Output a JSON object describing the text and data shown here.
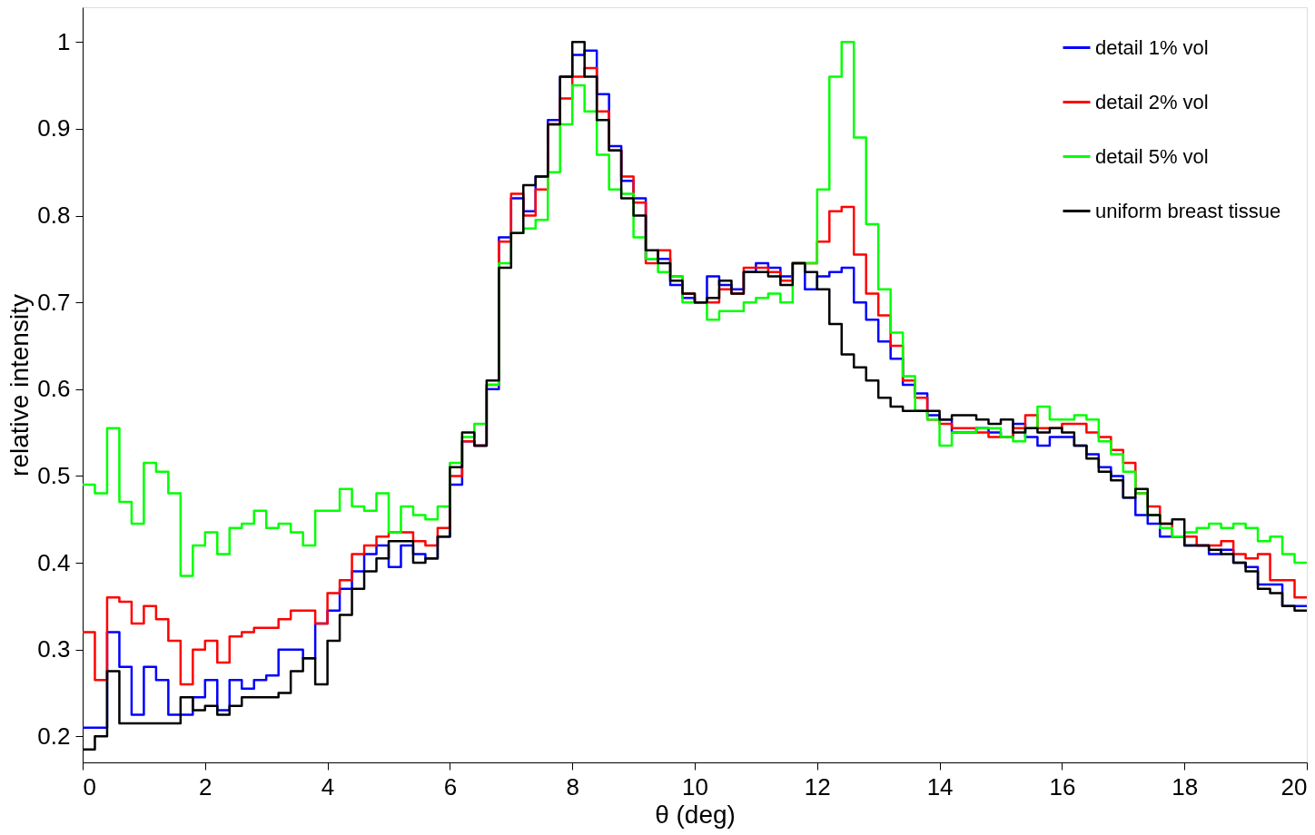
{
  "chart_data": {
    "type": "histogram",
    "xlabel": "θ (deg)",
    "ylabel": "relative intensity",
    "bins": [
      0,
      0.2,
      0.4,
      0.6,
      0.8,
      1,
      1.2,
      1.4,
      1.6,
      1.8,
      2,
      2.2,
      2.4,
      2.6,
      2.8,
      3,
      3.2,
      3.4,
      3.6,
      3.8,
      4,
      4.2,
      4.4,
      4.6,
      4.8,
      5,
      5.2,
      5.4,
      5.6,
      5.8,
      6,
      6.2,
      6.4,
      6.6,
      6.8,
      7,
      7.2,
      7.4,
      7.6,
      7.8,
      8,
      8.2,
      8.4,
      8.6,
      8.8,
      9,
      9.2,
      9.4,
      9.6,
      9.8,
      10,
      10.2,
      10.4,
      10.6,
      10.8,
      11,
      11.2,
      11.4,
      11.6,
      11.8,
      12,
      12.2,
      12.4,
      12.6,
      12.8,
      13,
      13.2,
      13.4,
      13.6,
      13.8,
      14,
      14.2,
      14.4,
      14.6,
      14.8,
      15,
      15.2,
      15.4,
      15.6,
      15.8,
      16,
      16.2,
      16.4,
      16.6,
      16.8,
      17,
      17.2,
      17.4,
      17.6,
      17.8,
      18,
      18.2,
      18.4,
      18.6,
      18.8,
      19,
      19.2,
      19.4,
      19.6,
      19.8,
      20
    ],
    "series": [
      {
        "name": "detail 1% vol",
        "color": "#0000ff",
        "values": [
          0.21,
          0.21,
          0.32,
          0.28,
          0.225,
          0.28,
          0.265,
          0.225,
          0.225,
          0.245,
          0.265,
          0.23,
          0.265,
          0.255,
          0.265,
          0.27,
          0.3,
          0.3,
          0.29,
          0.33,
          0.345,
          0.37,
          0.39,
          0.41,
          0.42,
          0.395,
          0.42,
          0.41,
          0.405,
          0.43,
          0.49,
          0.54,
          0.535,
          0.6,
          0.775,
          0.82,
          0.805,
          0.845,
          0.91,
          0.96,
          0.985,
          0.99,
          0.94,
          0.88,
          0.84,
          0.82,
          0.75,
          0.75,
          0.72,
          0.705,
          0.7,
          0.73,
          0.72,
          0.715,
          0.735,
          0.745,
          0.74,
          0.73,
          0.745,
          0.715,
          0.73,
          0.735,
          0.74,
          0.7,
          0.68,
          0.655,
          0.635,
          0.605,
          0.595,
          0.57,
          0.565,
          0.55,
          0.55,
          0.555,
          0.55,
          0.545,
          0.56,
          0.545,
          0.535,
          0.545,
          0.545,
          0.535,
          0.525,
          0.51,
          0.5,
          0.475,
          0.455,
          0.445,
          0.43,
          0.43,
          0.42,
          0.42,
          0.41,
          0.415,
          0.4,
          0.395,
          0.375,
          0.375,
          0.35,
          0.35
        ]
      },
      {
        "name": "detail 2% vol",
        "color": "#ff0000",
        "values": [
          0.32,
          0.265,
          0.36,
          0.355,
          0.33,
          0.35,
          0.335,
          0.31,
          0.26,
          0.3,
          0.31,
          0.285,
          0.315,
          0.32,
          0.325,
          0.325,
          0.335,
          0.345,
          0.345,
          0.33,
          0.365,
          0.38,
          0.41,
          0.42,
          0.43,
          0.435,
          0.435,
          0.425,
          0.42,
          0.44,
          0.5,
          0.54,
          0.535,
          0.605,
          0.77,
          0.825,
          0.8,
          0.83,
          0.905,
          0.935,
          0.96,
          0.97,
          0.92,
          0.875,
          0.845,
          0.815,
          0.745,
          0.76,
          0.73,
          0.71,
          0.7,
          0.7,
          0.715,
          0.71,
          0.74,
          0.74,
          0.735,
          0.725,
          0.745,
          0.745,
          0.77,
          0.805,
          0.81,
          0.755,
          0.71,
          0.685,
          0.65,
          0.61,
          0.59,
          0.565,
          0.56,
          0.555,
          0.555,
          0.55,
          0.545,
          0.545,
          0.555,
          0.57,
          0.555,
          0.555,
          0.56,
          0.56,
          0.55,
          0.545,
          0.53,
          0.515,
          0.48,
          0.465,
          0.445,
          0.43,
          0.43,
          0.42,
          0.42,
          0.425,
          0.41,
          0.405,
          0.41,
          0.38,
          0.38,
          0.36
        ]
      },
      {
        "name": "detail 5% vol",
        "color": "#00ff00",
        "values": [
          0.49,
          0.48,
          0.555,
          0.47,
          0.445,
          0.515,
          0.505,
          0.48,
          0.385,
          0.42,
          0.435,
          0.41,
          0.44,
          0.445,
          0.46,
          0.44,
          0.445,
          0.435,
          0.42,
          0.46,
          0.46,
          0.485,
          0.465,
          0.46,
          0.48,
          0.435,
          0.465,
          0.455,
          0.45,
          0.465,
          0.515,
          0.545,
          0.56,
          0.605,
          0.745,
          0.78,
          0.785,
          0.795,
          0.85,
          0.905,
          0.95,
          0.92,
          0.87,
          0.83,
          0.825,
          0.775,
          0.75,
          0.735,
          0.73,
          0.7,
          0.7,
          0.68,
          0.69,
          0.69,
          0.7,
          0.705,
          0.71,
          0.7,
          0.745,
          0.745,
          0.83,
          0.96,
          1.0,
          0.89,
          0.79,
          0.715,
          0.665,
          0.615,
          0.575,
          0.565,
          0.535,
          0.55,
          0.55,
          0.555,
          0.555,
          0.545,
          0.54,
          0.555,
          0.58,
          0.565,
          0.565,
          0.57,
          0.565,
          0.54,
          0.525,
          0.505,
          0.48,
          0.455,
          0.44,
          0.43,
          0.435,
          0.44,
          0.445,
          0.44,
          0.445,
          0.44,
          0.425,
          0.43,
          0.41,
          0.4
        ]
      },
      {
        "name": "uniform breast tissue",
        "color": "#000000",
        "values": [
          0.185,
          0.2,
          0.275,
          0.215,
          0.215,
          0.215,
          0.215,
          0.215,
          0.245,
          0.23,
          0.235,
          0.225,
          0.235,
          0.245,
          0.245,
          0.245,
          0.25,
          0.275,
          0.29,
          0.26,
          0.31,
          0.34,
          0.37,
          0.39,
          0.405,
          0.425,
          0.425,
          0.4,
          0.405,
          0.43,
          0.51,
          0.55,
          0.535,
          0.61,
          0.74,
          0.78,
          0.835,
          0.845,
          0.905,
          0.96,
          1.0,
          0.96,
          0.91,
          0.875,
          0.82,
          0.8,
          0.76,
          0.745,
          0.725,
          0.71,
          0.7,
          0.705,
          0.725,
          0.71,
          0.735,
          0.735,
          0.73,
          0.72,
          0.745,
          0.735,
          0.715,
          0.675,
          0.64,
          0.625,
          0.61,
          0.59,
          0.58,
          0.575,
          0.575,
          0.575,
          0.565,
          0.57,
          0.57,
          0.565,
          0.56,
          0.565,
          0.55,
          0.555,
          0.55,
          0.555,
          0.55,
          0.535,
          0.52,
          0.505,
          0.495,
          0.475,
          0.485,
          0.455,
          0.445,
          0.45,
          0.42,
          0.42,
          0.415,
          0.41,
          0.4,
          0.39,
          0.37,
          0.365,
          0.35,
          0.345
        ]
      }
    ],
    "xlim": [
      0,
      20
    ],
    "ylim": [
      0.17,
      1.04
    ],
    "xticks": [
      0,
      2,
      4,
      6,
      8,
      10,
      12,
      14,
      16,
      18,
      20
    ],
    "yticks": [
      0.2,
      0.3,
      0.4,
      0.5,
      0.6,
      0.7,
      0.8,
      0.9,
      1
    ],
    "legend": "top right",
    "grid": false
  }
}
